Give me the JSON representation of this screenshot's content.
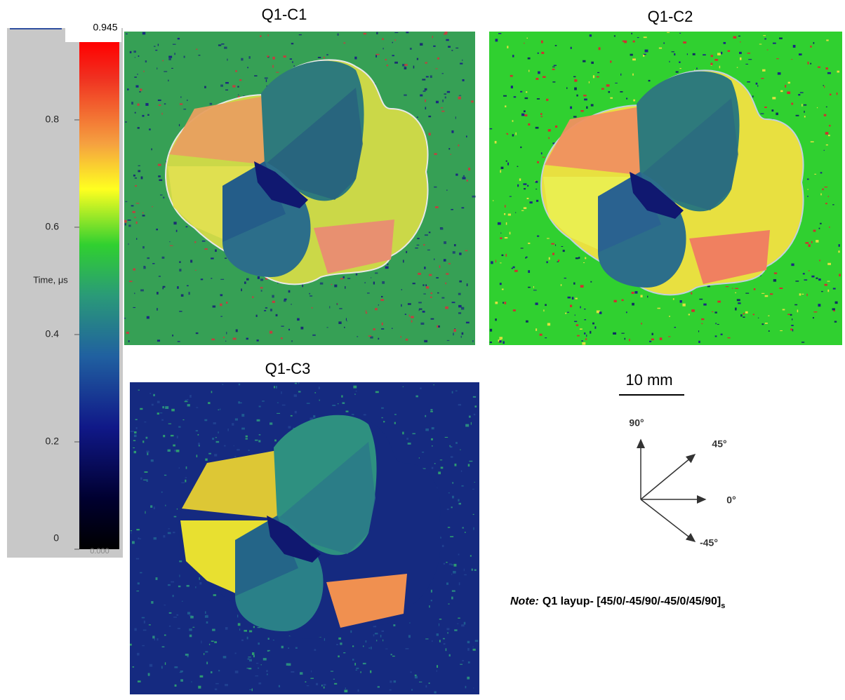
{
  "colorbar": {
    "label": "Time, μs",
    "max": {
      "value": 0.945,
      "label": "0.945"
    },
    "min": {
      "value": 0,
      "label": "0.000"
    },
    "ticks": [
      0.8,
      0.6,
      0.4,
      0.2,
      0
    ]
  },
  "panels": [
    {
      "title": "Q1-C1"
    },
    {
      "title": "Q1-C2"
    },
    {
      "title": "Q1-C3"
    }
  ],
  "scale_bar": "10 mm",
  "directions": [
    "90°",
    "45°",
    "0°",
    "-45°"
  ],
  "note": {
    "prefix": "Note:",
    "text": "Q1 layup- [45/0/-45/90/-45/0/45/90]",
    "subscript": "s"
  }
}
